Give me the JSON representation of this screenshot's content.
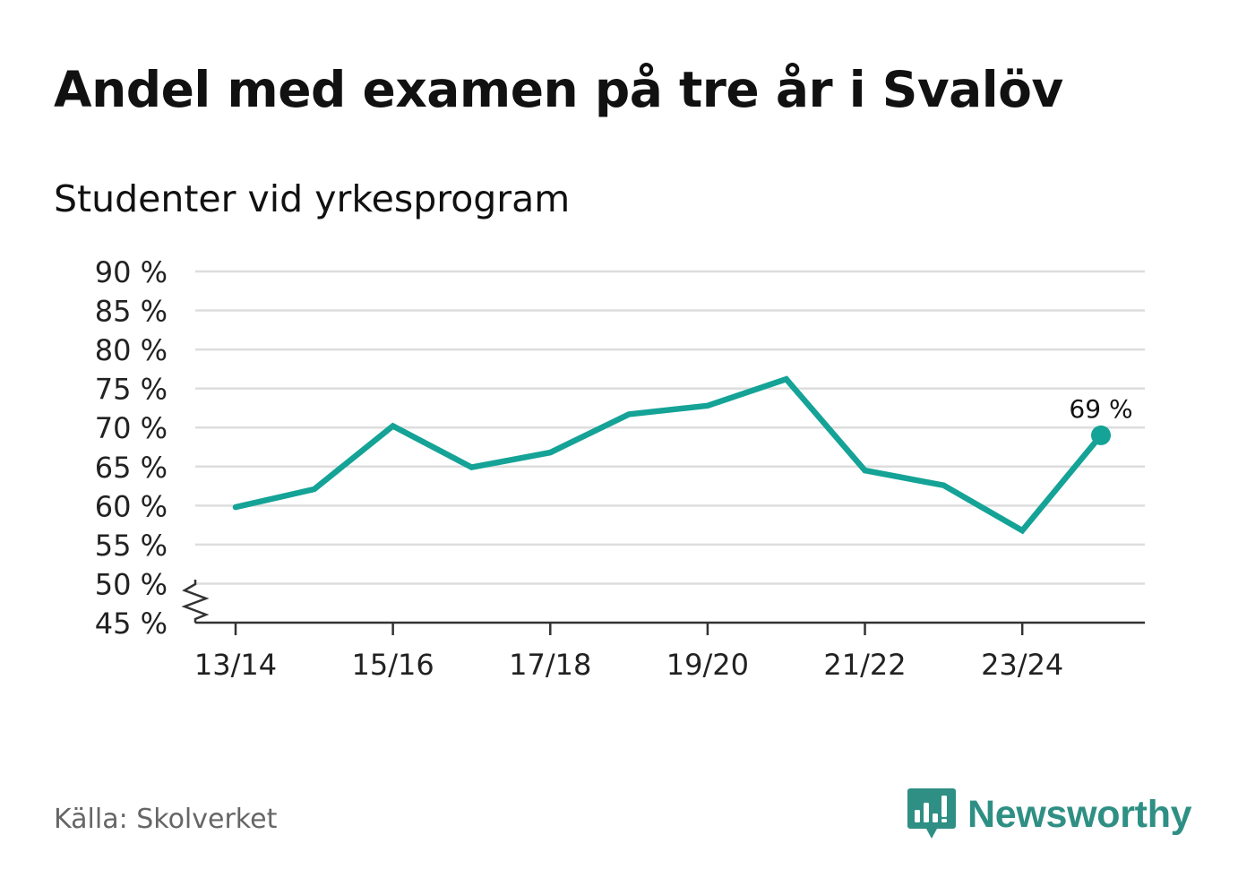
{
  "header": {
    "title": "Andel med examen på tre år i Svalöv",
    "subtitle": "Studenter vid yrkesprogram"
  },
  "footer": {
    "source": "Källa: Skolverket",
    "brand": "Newsworthy"
  },
  "colors": {
    "line": "#14a396",
    "grid": "#dddddd",
    "axis": "#333333",
    "brand": "#2f8f84"
  },
  "icons": {
    "brand": "bar-chart-speech-bubble-icon",
    "axis_break": "zigzag-axis-break-icon"
  },
  "chart_data": {
    "type": "line",
    "x": [
      "13/14",
      "14/15",
      "15/16",
      "16/17",
      "17/18",
      "18/19",
      "19/20",
      "20/21",
      "21/22",
      "22/23",
      "23/24",
      "24/25"
    ],
    "xtick_labels": [
      "13/14",
      "15/16",
      "17/18",
      "19/20",
      "21/22",
      "23/24"
    ],
    "series": [
      {
        "values": [
          59.8,
          62.1,
          70.2,
          64.9,
          66.8,
          71.7,
          72.8,
          76.2,
          64.5,
          62.6,
          56.8,
          69.0
        ]
      }
    ],
    "yticks": [
      "90 %",
      "85 %",
      "80 %",
      "75 %",
      "70 %",
      "65 %",
      "60 %",
      "55 %",
      "50 %",
      "45 %"
    ],
    "ylim": [
      45,
      90
    ],
    "grid": true,
    "axis_break": true,
    "annotation": {
      "index": 11,
      "text": "69 %"
    }
  }
}
